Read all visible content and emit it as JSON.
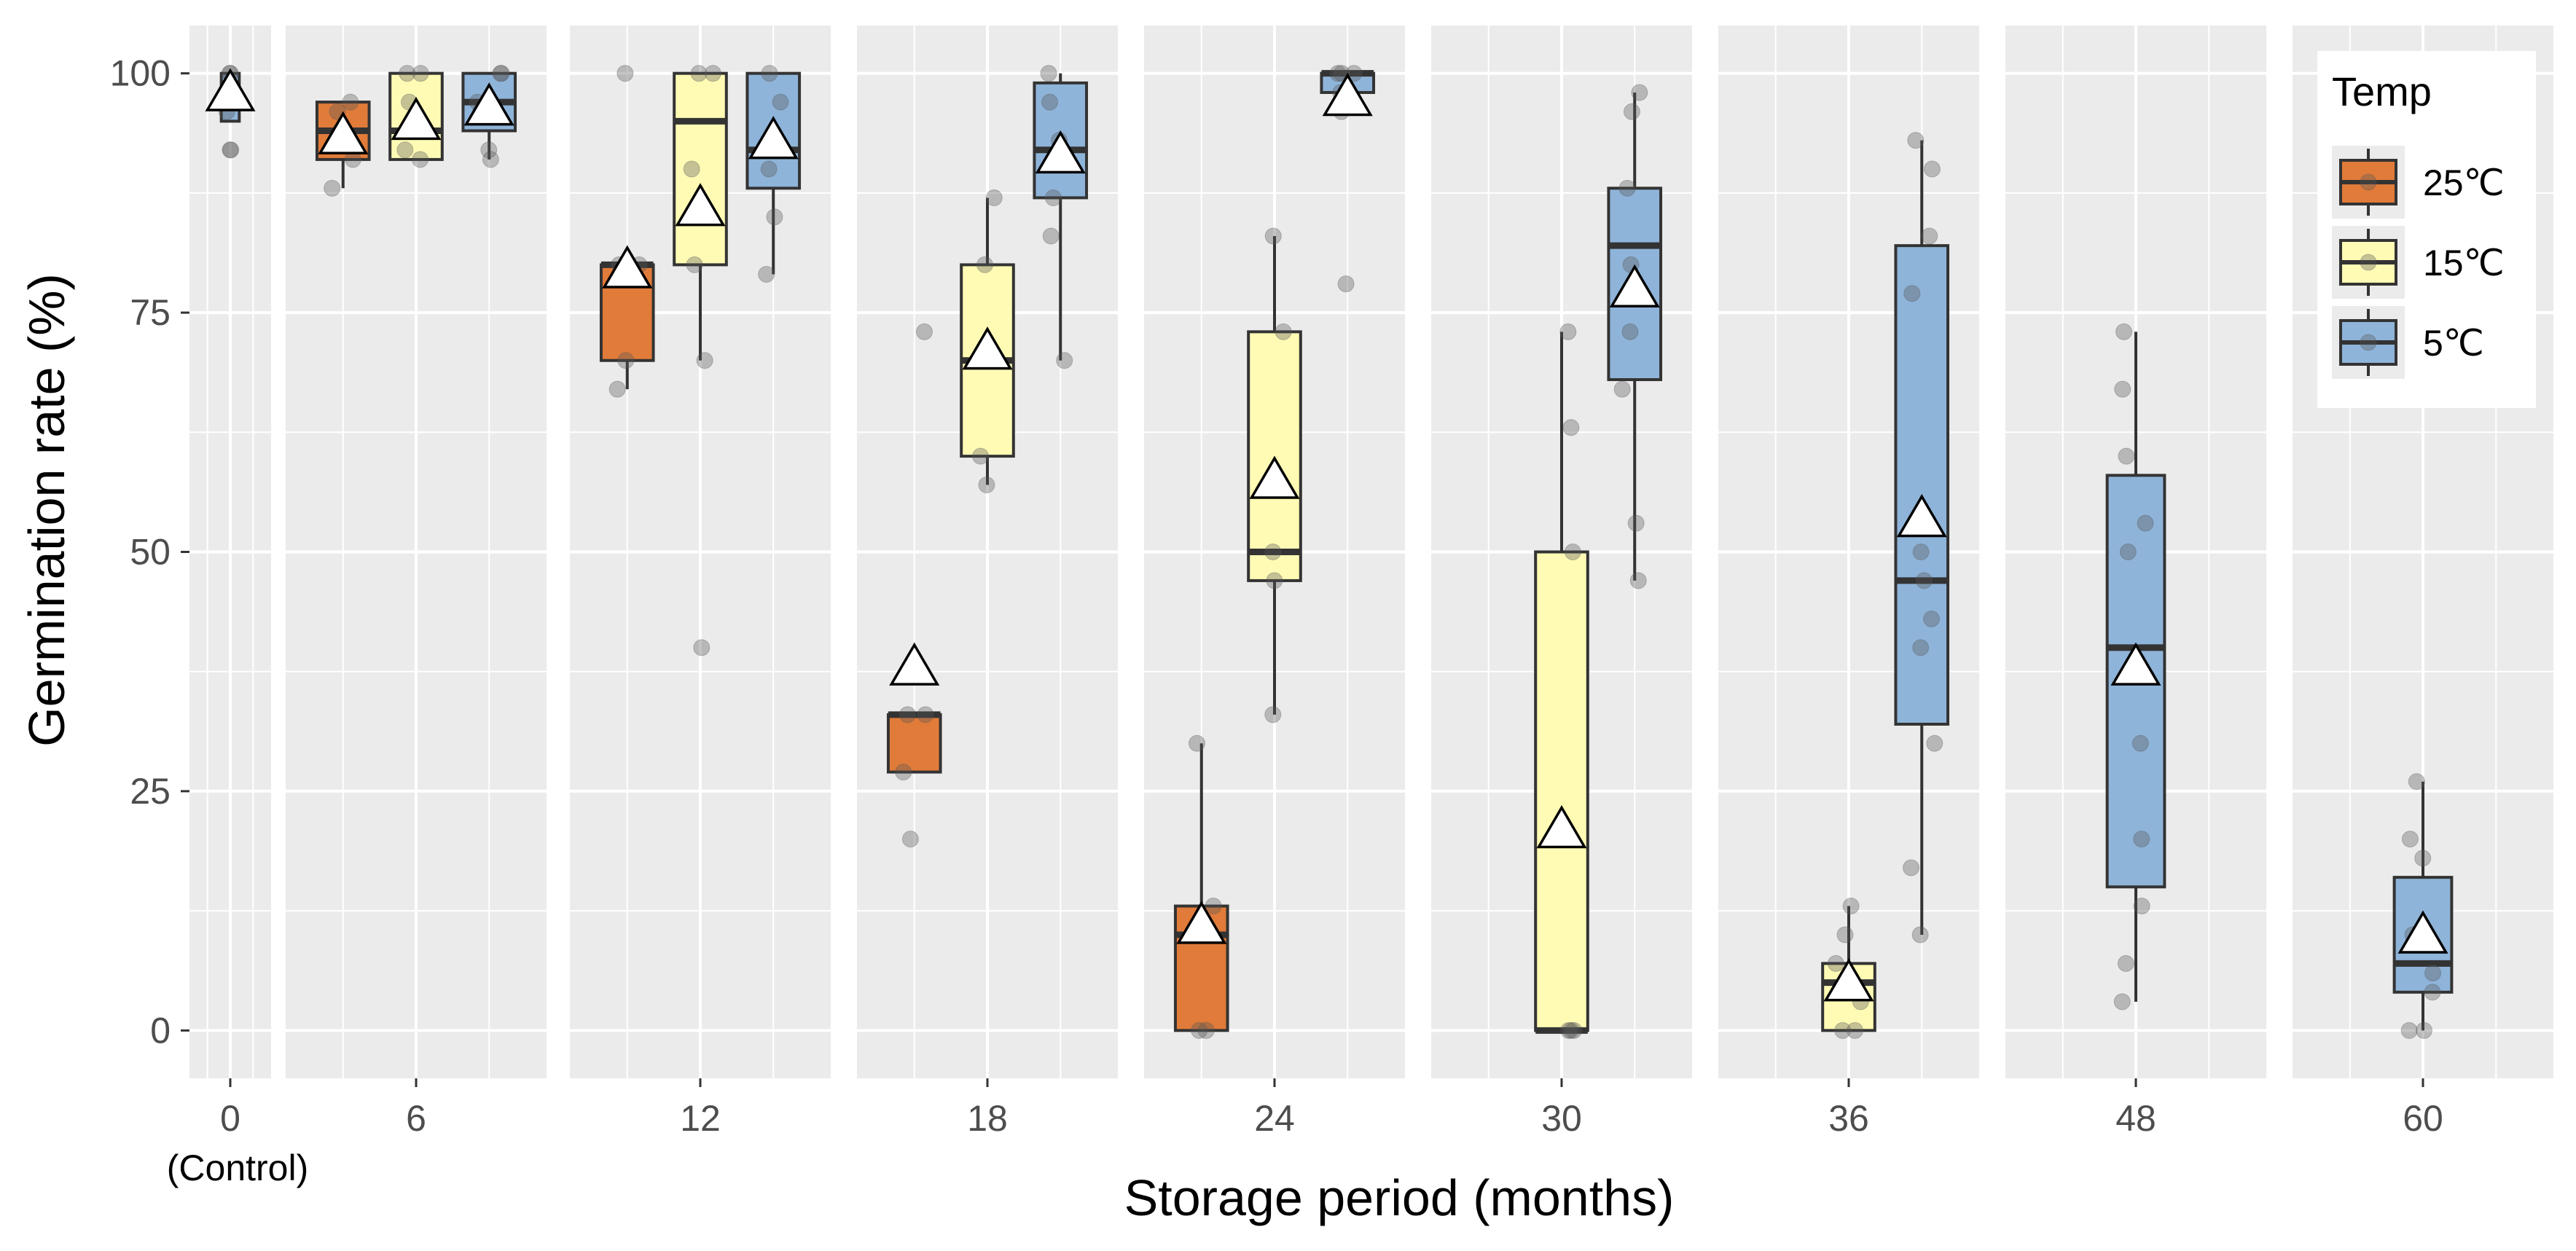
{
  "chart_data": {
    "type": "boxplot",
    "xlabel": "Storage period (months)",
    "ylabel": "Germination rate (%)",
    "ylim": [
      -5,
      105
    ],
    "y_ticks": [
      0,
      25,
      50,
      75,
      100
    ],
    "grid": true,
    "legend": {
      "title": "Temp",
      "position": "top-right",
      "entries": [
        {
          "label": "25℃",
          "color": "#E07B39"
        },
        {
          "label": "15℃",
          "color": "#FFFBB5"
        },
        {
          "label": "5℃",
          "color": "#8FB4D9"
        }
      ]
    },
    "series_order": [
      "25℃",
      "15℃",
      "5℃"
    ],
    "panels": [
      {
        "label": "0",
        "sublabel": "(Control)",
        "groups": [
          {
            "temp": "5℃",
            "color": "#8FB4D9",
            "min": 95,
            "q1": 95,
            "median": 97,
            "q3": 100,
            "max": 100,
            "mean": 98,
            "points": [
              92,
              92,
              96,
              98,
              100,
              100
            ]
          }
        ]
      },
      {
        "label": "6",
        "sublabel": "",
        "groups": [
          {
            "temp": "25℃",
            "color": "#E07B39",
            "min": 88,
            "q1": 91,
            "median": 94,
            "q3": 97,
            "max": 97,
            "mean": 93.5,
            "points": [
              88,
              91,
              93,
              94,
              96,
              97
            ]
          },
          {
            "temp": "15℃",
            "color": "#FFFBB5",
            "min": 91,
            "q1": 91,
            "median": 94,
            "q3": 100,
            "max": 100,
            "mean": 95,
            "points": [
              91,
              92,
              94,
              97,
              100,
              100
            ]
          },
          {
            "temp": "5℃",
            "color": "#8FB4D9",
            "min": 91,
            "q1": 94,
            "median": 97,
            "q3": 100,
            "max": 100,
            "mean": 96.5,
            "points": [
              91,
              92,
              96,
              97,
              100,
              100
            ]
          }
        ]
      },
      {
        "label": "12",
        "sublabel": "",
        "groups": [
          {
            "temp": "25℃",
            "color": "#E07B39",
            "min": 67,
            "q1": 70,
            "median": 80,
            "q3": 80,
            "max": 80,
            "mean": 79.5,
            "points": [
              67,
              70,
              80,
              80,
              100
            ]
          },
          {
            "temp": "15℃",
            "color": "#FFFBB5",
            "min": 70,
            "q1": 80,
            "median": 95,
            "q3": 100,
            "max": 100,
            "mean": 86,
            "points": [
              40,
              70,
              80,
              90,
              100,
              100
            ]
          },
          {
            "temp": "5℃",
            "color": "#8FB4D9",
            "min": 79,
            "q1": 88,
            "median": 92,
            "q3": 100,
            "max": 100,
            "mean": 93,
            "points": [
              79,
              85,
              90,
              92,
              97,
              100
            ]
          }
        ]
      },
      {
        "label": "18",
        "sublabel": "",
        "groups": [
          {
            "temp": "25℃",
            "color": "#E07B39",
            "min": 27,
            "q1": 27,
            "median": 33,
            "q3": 33,
            "max": 33,
            "mean": 38,
            "points": [
              20,
              27,
              33,
              33,
              73
            ]
          },
          {
            "temp": "15℃",
            "color": "#FFFBB5",
            "min": 57,
            "q1": 60,
            "median": 70,
            "q3": 80,
            "max": 87,
            "mean": 71,
            "points": [
              57,
              60,
              70,
              80,
              87
            ]
          },
          {
            "temp": "5℃",
            "color": "#8FB4D9",
            "min": 70,
            "q1": 87,
            "median": 92,
            "q3": 99,
            "max": 100,
            "mean": 91.5,
            "points": [
              70,
              83,
              87,
              93,
              97,
              100
            ]
          }
        ]
      },
      {
        "label": "24",
        "sublabel": "",
        "groups": [
          {
            "temp": "25℃",
            "color": "#E07B39",
            "min": 0,
            "q1": 0,
            "median": 10,
            "q3": 13,
            "max": 30,
            "mean": 11,
            "points": [
              0,
              0,
              10,
              13,
              30
            ]
          },
          {
            "temp": "15℃",
            "color": "#FFFBB5",
            "min": 33,
            "q1": 47,
            "median": 50,
            "q3": 73,
            "max": 83,
            "mean": 57.5,
            "points": [
              33,
              47,
              50,
              73,
              83
            ]
          },
          {
            "temp": "5℃",
            "color": "#8FB4D9",
            "min": 98,
            "q1": 98,
            "median": 100,
            "q3": 100,
            "max": 100,
            "mean": 97.5,
            "points": [
              78,
              96,
              98,
              100,
              100,
              100
            ]
          }
        ]
      },
      {
        "label": "30",
        "sublabel": "",
        "groups": [
          {
            "temp": "15℃",
            "color": "#FFFBB5",
            "min": 0,
            "q1": 0,
            "median": 0,
            "q3": 50,
            "max": 73,
            "mean": 21,
            "points": [
              0,
              0,
              0,
              50,
              63,
              73
            ]
          },
          {
            "temp": "5℃",
            "color": "#8FB4D9",
            "min": 47,
            "q1": 68,
            "median": 82,
            "q3": 88,
            "max": 98,
            "mean": 77.5,
            "points": [
              47,
              53,
              67,
              73,
              80,
              88,
              96,
              98
            ]
          }
        ]
      },
      {
        "label": "36",
        "sublabel": "",
        "groups": [
          {
            "temp": "15℃",
            "color": "#FFFBB5",
            "min": 0,
            "q1": 0,
            "median": 5,
            "q3": 7,
            "max": 13,
            "mean": 5,
            "points": [
              0,
              0,
              3,
              7,
              10,
              13
            ]
          },
          {
            "temp": "5℃",
            "color": "#8FB4D9",
            "min": 10,
            "q1": 32,
            "median": 47,
            "q3": 82,
            "max": 93,
            "mean": 53.5,
            "points": [
              10,
              17,
              30,
              40,
              43,
              47,
              50,
              77,
              83,
              90,
              93
            ]
          }
        ]
      },
      {
        "label": "48",
        "sublabel": "",
        "groups": [
          {
            "temp": "5℃",
            "color": "#8FB4D9",
            "min": 3,
            "q1": 15,
            "median": 40,
            "q3": 58,
            "max": 73,
            "mean": 38,
            "points": [
              3,
              7,
              13,
              20,
              30,
              37,
              50,
              53,
              60,
              67,
              73
            ]
          }
        ]
      },
      {
        "label": "60",
        "sublabel": "",
        "groups": [
          {
            "temp": "5℃",
            "color": "#8FB4D9",
            "min": 0,
            "q1": 4,
            "median": 7,
            "q3": 16,
            "max": 26,
            "mean": 10,
            "points": [
              0,
              0,
              4,
              6,
              10,
              18,
              20,
              26
            ]
          }
        ]
      }
    ]
  }
}
